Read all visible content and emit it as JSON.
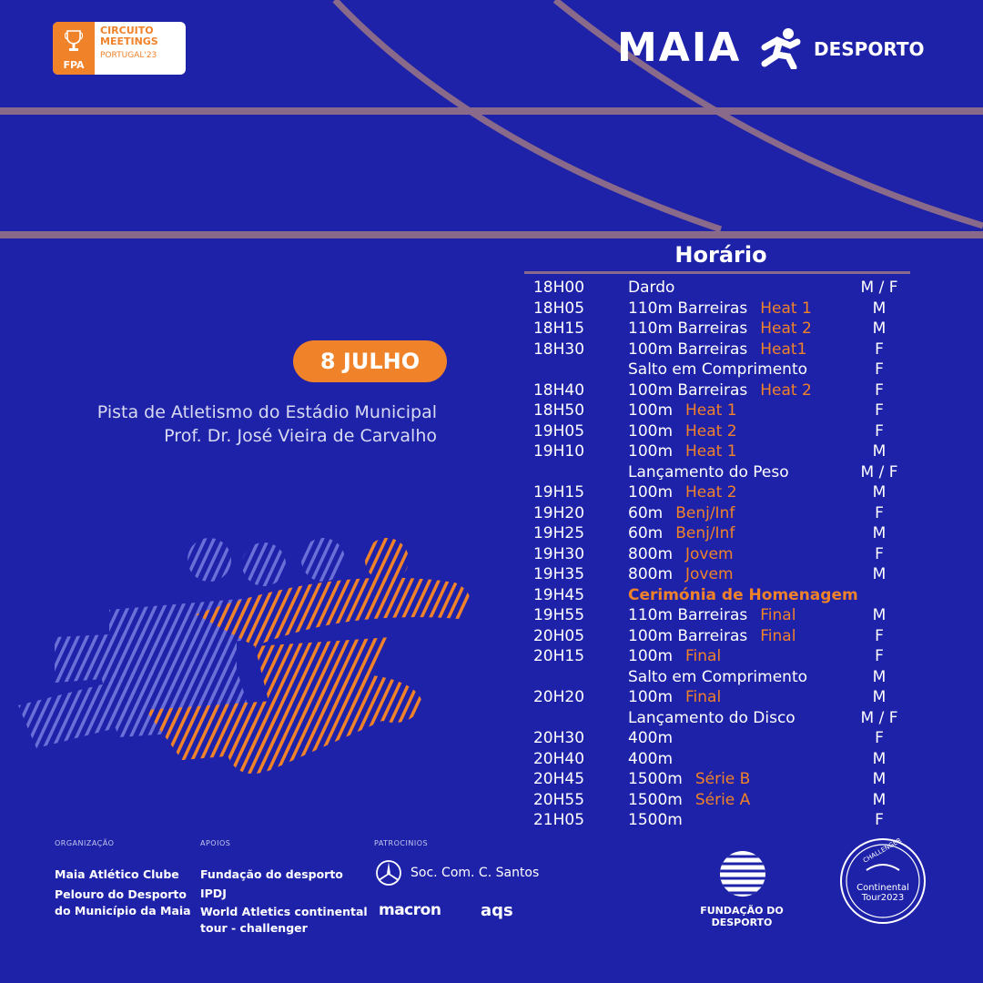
{
  "header": {
    "fpa_logo": {
      "abbr": "FPA",
      "line1": "CIRCUITO",
      "line2": "MEETINGS",
      "line3": "PORTUGAL'23",
      "icon": "trophy-icon"
    },
    "maia_logo": {
      "word": "MAIA",
      "icon": "runner-icon",
      "suffix": "DESPORTO"
    }
  },
  "event": {
    "date": "8 JULHO",
    "venue_line1": "Pista de Atletismo do Estádio Municipal",
    "venue_line2": "Prof. Dr. José Vieira de Carvalho"
  },
  "schedule": {
    "title": "Horário",
    "rows": [
      {
        "time": "18H00",
        "event": "Dardo",
        "tag": "",
        "gender": "M / F"
      },
      {
        "time": "18H05",
        "event": "110m Barreiras",
        "tag": "Heat 1",
        "gender": "M"
      },
      {
        "time": "18H15",
        "event": "110m Barreiras",
        "tag": "Heat 2",
        "gender": "M"
      },
      {
        "time": "18H30",
        "event": "100m Barreiras",
        "tag": "Heat1",
        "gender": "F"
      },
      {
        "time": "",
        "event": "Salto em Comprimento",
        "tag": "",
        "gender": "F"
      },
      {
        "time": "18H40",
        "event": "100m Barreiras",
        "tag": "Heat 2",
        "gender": "F"
      },
      {
        "time": "18H50",
        "event": "100m",
        "tag": "Heat 1",
        "gender": "F"
      },
      {
        "time": "19H05",
        "event": "100m",
        "tag": "Heat 2",
        "gender": "F"
      },
      {
        "time": "19H10",
        "event": "100m",
        "tag": "Heat 1",
        "gender": "M"
      },
      {
        "time": "",
        "event": "Lançamento do Peso",
        "tag": "",
        "gender": "M / F"
      },
      {
        "time": "19H15",
        "event": "100m",
        "tag": "Heat 2",
        "gender": "M"
      },
      {
        "time": "19H20",
        "event": "60m",
        "tag": "Benj/Inf",
        "gender": "F"
      },
      {
        "time": "19H25",
        "event": "60m",
        "tag": "Benj/Inf",
        "gender": "M"
      },
      {
        "time": "19H30",
        "event": "800m",
        "tag": "Jovem",
        "gender": "F"
      },
      {
        "time": "19H35",
        "event": "800m",
        "tag": "Jovem",
        "gender": "M"
      },
      {
        "time": "19H45",
        "event": "Cerimónia de Homenagem",
        "tag": "",
        "gender": "",
        "highlight": true
      },
      {
        "time": "19H55",
        "event": "110m Barreiras",
        "tag": "Final",
        "gender": "M"
      },
      {
        "time": "20H05",
        "event": "100m Barreiras",
        "tag": "Final",
        "gender": "F"
      },
      {
        "time": "20H15",
        "event": "100m",
        "tag": "Final",
        "gender": "F"
      },
      {
        "time": "",
        "event": "Salto em Comprimento",
        "tag": "",
        "gender": "M"
      },
      {
        "time": "20H20",
        "event": "100m",
        "tag": "Final",
        "gender": "M"
      },
      {
        "time": "",
        "event": "Lançamento do Disco",
        "tag": "",
        "gender": "M / F"
      },
      {
        "time": "20H30",
        "event": "400m",
        "tag": "",
        "gender": "F"
      },
      {
        "time": "20H40",
        "event": "400m",
        "tag": "",
        "gender": "M"
      },
      {
        "time": "20H45",
        "event": "1500m",
        "tag": "Série B",
        "gender": "M"
      },
      {
        "time": "20H55",
        "event": "1500m",
        "tag": "Série A",
        "gender": "M"
      },
      {
        "time": "21H05",
        "event": "1500m",
        "tag": "",
        "gender": "F"
      }
    ]
  },
  "footer": {
    "organizacao": {
      "label": "ORGANIZAÇÃO",
      "line1": "Maia Atlético Clube",
      "line2": "Pelouro do Desporto",
      "line3": "do Município da Maia"
    },
    "apoios": {
      "label": "APOIOS",
      "line1": "Fundação do desporto",
      "line2": "IPDJ",
      "line3": "World Atletics continental",
      "line4": "tour - challenger"
    },
    "patrocinios": {
      "label": "PATROCINIOS",
      "sponsor1": "Soc. Com. C. Santos",
      "sponsor2": "macron",
      "sponsor3": "aqs"
    },
    "fundacao": {
      "text": "FUNDAÇÃO DO DESPORTO",
      "icon": "globe-icon"
    },
    "wa_badge": {
      "top": "CHALLENGER",
      "line1": "Continental",
      "line2": "Tour2023",
      "icon": "world-athletics-badge-icon"
    }
  },
  "colors": {
    "background": "#1e22a8",
    "accent": "#f0822a",
    "track_line": "#8a6a8a"
  }
}
